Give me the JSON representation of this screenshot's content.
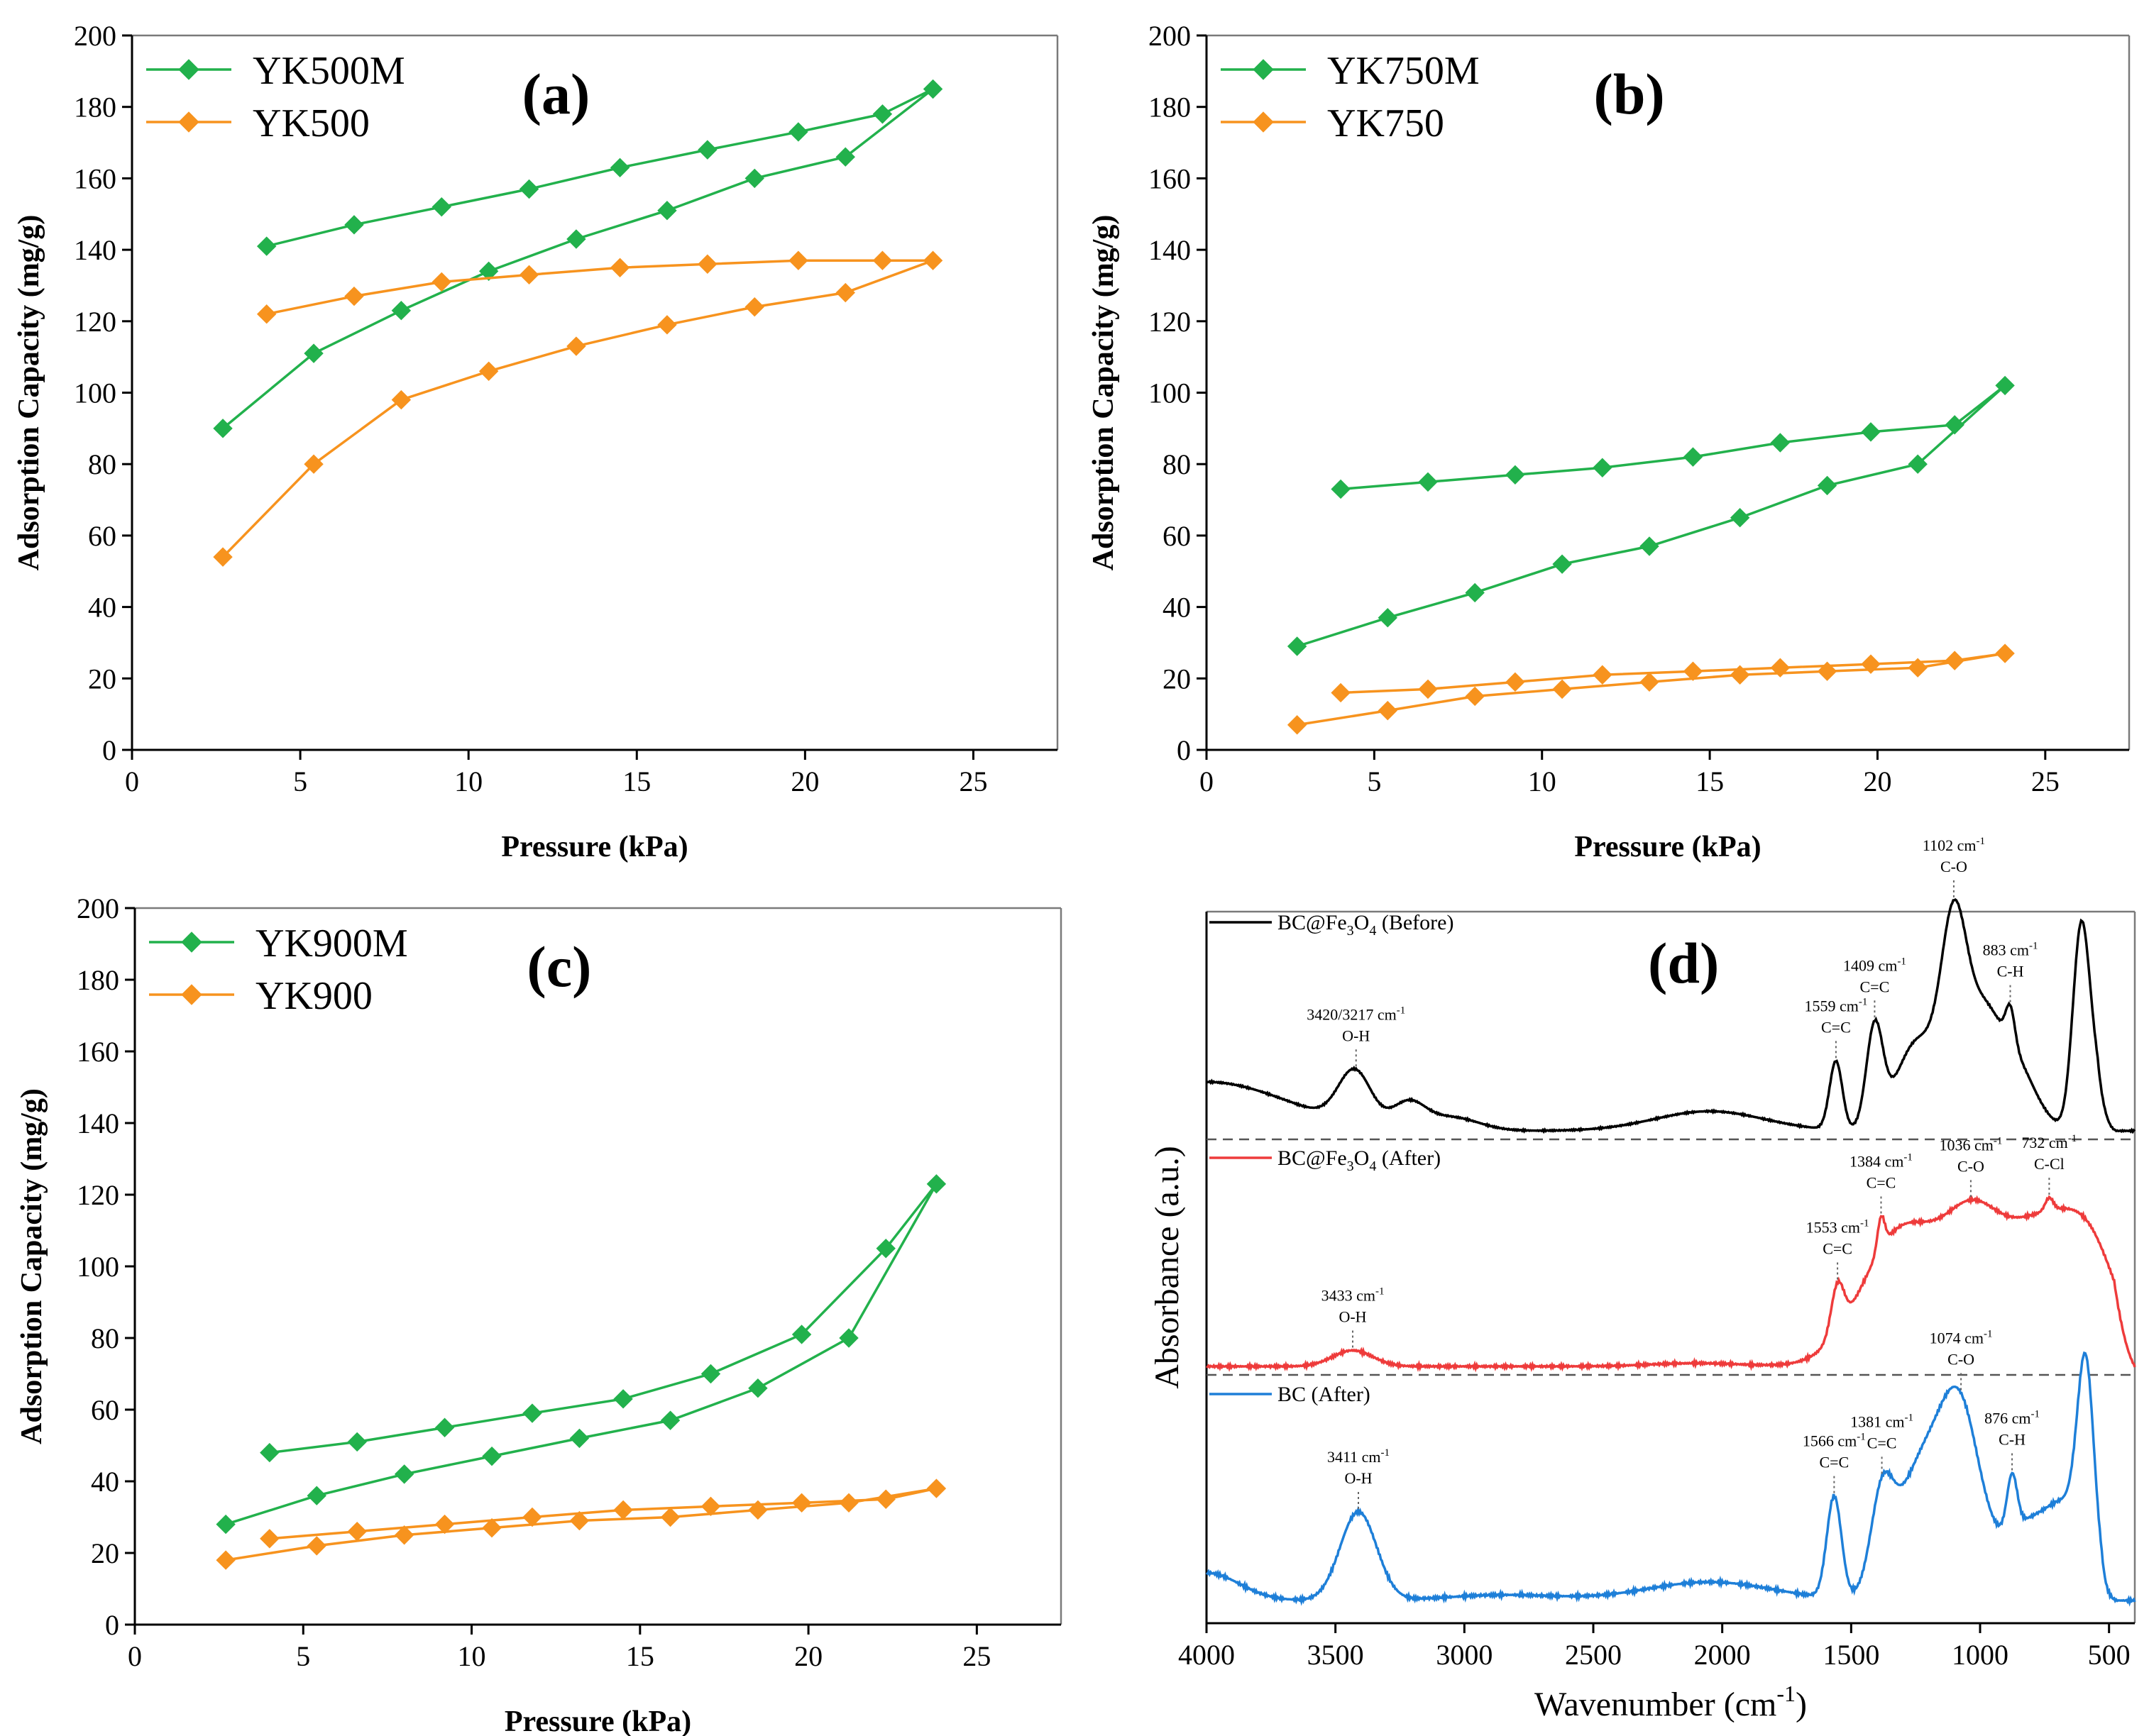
{
  "chart_data": [
    {
      "id": "a",
      "type": "line",
      "panel_label": "(a)",
      "xlabel": "Pressure (kPa)",
      "ylabel": "Adsorption Capacity (mg/g)",
      "xlim": [
        0,
        27.5
      ],
      "ylim": [
        0,
        200
      ],
      "xticks": [
        0,
        5,
        10,
        15,
        20,
        25
      ],
      "yticks": [
        0,
        20,
        40,
        60,
        80,
        100,
        120,
        140,
        160,
        180,
        200
      ],
      "legend_position": "top-left",
      "series": [
        {
          "name": "YK500M",
          "color": "#22b14c",
          "marker": "diamond",
          "x": [
            2.7,
            5.4,
            8.0,
            10.6,
            13.2,
            15.9,
            18.5,
            21.2,
            23.8,
            22.3,
            19.8,
            17.1,
            14.5,
            11.8,
            9.2,
            6.6,
            4.0
          ],
          "y": [
            90,
            111,
            123,
            134,
            143,
            151,
            160,
            166,
            185,
            178,
            173,
            168,
            163,
            157,
            152,
            147,
            141
          ]
        },
        {
          "name": "YK500",
          "color": "#f7931e",
          "marker": "diamond",
          "x": [
            2.7,
            5.4,
            8.0,
            10.6,
            13.2,
            15.9,
            18.5,
            21.2,
            23.8,
            22.3,
            19.8,
            17.1,
            14.5,
            11.8,
            9.2,
            6.6,
            4.0
          ],
          "y": [
            54,
            80,
            98,
            106,
            113,
            119,
            124,
            128,
            137,
            137,
            137,
            136,
            135,
            133,
            131,
            127,
            122
          ]
        }
      ]
    },
    {
      "id": "b",
      "type": "line",
      "panel_label": "(b)",
      "xlabel": "Pressure (kPa)",
      "ylabel": "Adsorption Capacity (mg/g)",
      "xlim": [
        0,
        27.5
      ],
      "ylim": [
        0,
        200
      ],
      "xticks": [
        0,
        5,
        10,
        15,
        20,
        25
      ],
      "yticks": [
        0,
        20,
        40,
        60,
        80,
        100,
        120,
        140,
        160,
        180,
        200
      ],
      "legend_position": "top-left",
      "series": [
        {
          "name": "YK750M",
          "color": "#22b14c",
          "marker": "diamond",
          "x": [
            2.7,
            5.4,
            8.0,
            10.6,
            13.2,
            15.9,
            18.5,
            21.2,
            23.8,
            22.3,
            19.8,
            17.1,
            14.5,
            11.8,
            9.2,
            6.6,
            4.0
          ],
          "y": [
            29,
            37,
            44,
            52,
            57,
            65,
            74,
            80,
            102,
            91,
            89,
            86,
            82,
            79,
            77,
            75,
            73
          ]
        },
        {
          "name": "YK750",
          "color": "#f7931e",
          "marker": "diamond",
          "x": [
            2.7,
            5.4,
            8.0,
            10.6,
            13.2,
            15.9,
            18.5,
            21.2,
            23.8,
            22.3,
            19.8,
            17.1,
            14.5,
            11.8,
            9.2,
            6.6,
            4.0
          ],
          "y": [
            7,
            11,
            15,
            17,
            19,
            21,
            22,
            23,
            27,
            25,
            24,
            23,
            22,
            21,
            19,
            17,
            16
          ]
        }
      ]
    },
    {
      "id": "c",
      "type": "line",
      "panel_label": "(c)",
      "xlabel": "Pressure (kPa)",
      "ylabel": "Adsorption Capacity (mg/g)",
      "xlim": [
        0,
        27.5
      ],
      "ylim": [
        0,
        200
      ],
      "xticks": [
        0,
        5,
        10,
        15,
        20,
        25
      ],
      "yticks": [
        0,
        20,
        40,
        60,
        80,
        100,
        120,
        140,
        160,
        180,
        200
      ],
      "legend_position": "top-left",
      "series": [
        {
          "name": "YK900M",
          "color": "#22b14c",
          "marker": "diamond",
          "x": [
            2.7,
            5.4,
            8.0,
            10.6,
            13.2,
            15.9,
            18.5,
            21.2,
            23.8,
            22.3,
            19.8,
            17.1,
            14.5,
            11.8,
            9.2,
            6.6,
            4.0
          ],
          "y": [
            28,
            36,
            42,
            47,
            52,
            57,
            66,
            80,
            123,
            105,
            81,
            70,
            63,
            59,
            55,
            51,
            48
          ]
        },
        {
          "name": "YK900",
          "color": "#f7931e",
          "marker": "diamond",
          "x": [
            2.7,
            5.4,
            8.0,
            10.6,
            13.2,
            15.9,
            18.5,
            21.2,
            23.8,
            22.3,
            19.8,
            17.1,
            14.5,
            11.8,
            9.2,
            6.6,
            4.0
          ],
          "y": [
            18,
            22,
            25,
            27,
            29,
            30,
            32,
            34,
            38,
            35,
            34,
            33,
            32,
            30,
            28,
            26,
            24
          ]
        }
      ]
    },
    {
      "id": "d",
      "type": "line",
      "panel_label": "(d)",
      "xlabel": "Wavenumber (cm",
      "xlabel_sup": "-1",
      "xlabel_end": ")",
      "ylabel": "Absorbance (a.u.)",
      "xlim": [
        4000,
        400
      ],
      "xticks": [
        4000,
        3500,
        3000,
        2500,
        2000,
        1500,
        1000,
        500
      ],
      "series": [
        {
          "name": "BC@Fe3O4 (Before)",
          "legend_main": "BC@Fe",
          "legend_sub1": "3",
          "legend_mid": "O",
          "legend_sub2": "4",
          "legend_end": " (Before)",
          "color": "#000000",
          "peaks": [
            {
              "wn": "3420/3217 cm",
              "sup": "-1",
              "group": "O-H",
              "pos": 3420
            },
            {
              "wn": "1559 cm",
              "sup": "-1",
              "group": "C=C",
              "pos": 1559
            },
            {
              "wn": "1409 cm",
              "sup": "-1",
              "group": "C=C",
              "pos": 1409
            },
            {
              "wn": "1102 cm",
              "sup": "-1",
              "group": "C-O",
              "pos": 1102
            },
            {
              "wn": "883 cm",
              "sup": "-1",
              "group": "C-H",
              "pos": 883
            }
          ]
        },
        {
          "name": "BC@Fe3O4 (After)",
          "legend_main": "BC@Fe",
          "legend_sub1": "3",
          "legend_mid": "O",
          "legend_sub2": "4",
          "legend_end": " (After)",
          "color": "#ee3b3b",
          "peaks": [
            {
              "wn": "3433 cm",
              "sup": "-1",
              "group": "O-H",
              "pos": 3433
            },
            {
              "wn": "1553 cm",
              "sup": "-1",
              "group": "C=C",
              "pos": 1553
            },
            {
              "wn": "1384 cm",
              "sup": "-1",
              "group": "C=C",
              "pos": 1384
            },
            {
              "wn": "1036 cm",
              "sup": "-1",
              "group": "C-O",
              "pos": 1036
            },
            {
              "wn": "732 cm",
              "sup": "-1",
              "group": "C-Cl",
              "pos": 732
            }
          ]
        },
        {
          "name": "BC (After)",
          "legend_main": "BC (After)",
          "color": "#1e7fd8",
          "peaks": [
            {
              "wn": "3411 cm",
              "sup": "-1",
              "group": "O-H",
              "pos": 3411
            },
            {
              "wn": "1566 cm",
              "sup": "-1",
              "group": "C=C",
              "pos": 1566
            },
            {
              "wn": "1381 cm",
              "sup": "-1",
              "group": "C=C",
              "pos": 1381
            },
            {
              "wn": "1074 cm",
              "sup": "-1",
              "group": "C-O",
              "pos": 1074
            },
            {
              "wn": "876 cm",
              "sup": "-1",
              "group": "C-H",
              "pos": 876
            }
          ]
        }
      ]
    }
  ]
}
